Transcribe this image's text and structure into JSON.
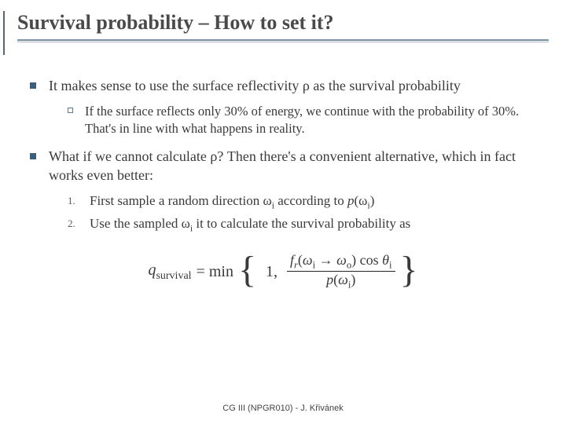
{
  "title": "Survival probability – How to set it?",
  "bullets": {
    "b1_pre": "It makes sense to use the surface reflectivity ",
    "b1_rho": "ρ",
    "b1_post": " as the survival probability",
    "b1_sub": "If the surface reflects only 30% of energy, we continue with the probability of 30%. That's in line with what happens in reality.",
    "b2_pre": "What if we cannot calculate ",
    "b2_rho": "ρ",
    "b2_post": "? Then there's a convenient alternative, which in fact works even better:",
    "step1_pre": "First sample a random direction ",
    "step1_omega": "ω",
    "step1_sub": "i",
    "step1_mid": " according to ",
    "step1_p": "p",
    "step1_paren_open": "(",
    "step1_omega2": "ω",
    "step1_sub2": "i",
    "step1_paren_close": ")",
    "step2_pre": "Use the sampled ",
    "step2_omega": "ω",
    "step2_sub": "i",
    "step2_post": " it to calculate the survival probability as"
  },
  "formula": {
    "lhs_q": "q",
    "lhs_sub": "survival",
    "eq": " = min",
    "one": "1,",
    "frac_top": "f",
    "frac_top_sub": "r",
    "frac_top_arg_open": "(",
    "frac_top_wi": "ω",
    "frac_top_wi_sub": "i",
    "frac_top_arrow": " → ",
    "frac_top_wo": "ω",
    "frac_top_wo_sub": "o",
    "frac_top_arg_close": ")",
    "frac_top_cos": " cos ",
    "frac_top_theta": "θ",
    "frac_top_theta_sub": "i",
    "frac_bot_p": "p",
    "frac_bot_open": "(",
    "frac_bot_wi": "ω",
    "frac_bot_wi_sub": "i",
    "frac_bot_close": ")"
  },
  "footer": "CG III (NPGR010) - J. Křivánek",
  "colors": {
    "bullet_fill": "#3b5f7a",
    "rule": "#7a8fa6"
  }
}
